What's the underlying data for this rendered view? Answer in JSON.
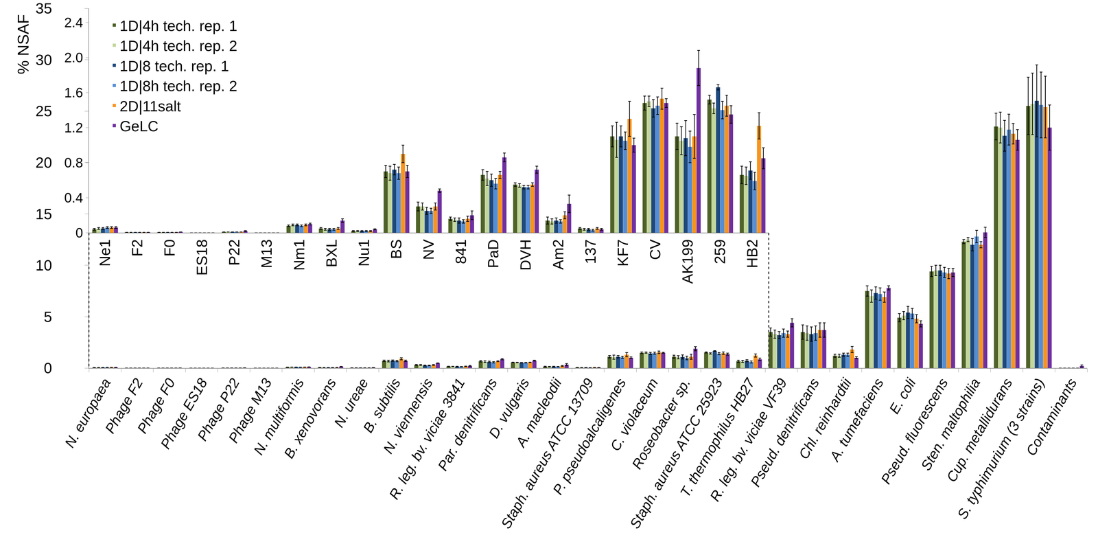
{
  "chart_data": [
    {
      "type": "bar",
      "y_label": "% NSAF",
      "categories": [
        "N. europaea",
        "Phage F2",
        "Phage F0",
        "Phage ES18",
        "Phage P22",
        "Phage M13",
        "N. multiformis",
        "B. xenovorans",
        "N. ureae",
        "B. subtilis",
        "N. viennensis",
        "R. leg. bv. viciae 3841",
        "Par. denitrificans",
        "D. vulgaris",
        "A. macleodii",
        "Staph. aureus ATCC 13709",
        "P. pseudoalcaligenes",
        "C. violaceum",
        "Roseobacter sp.",
        "Staph. aureus ATCC 25923",
        "T. thermophilus HB27",
        "R. leg. bv. viciae VF39",
        "Pseud. denitrificans",
        "Chl. reinhardtii",
        "A. tumefaciens",
        "E. coli",
        "Pseud. fluorescens",
        "Sten. maltophilia",
        "Cup. metallidurans",
        "S. typhimurium (3 strains)",
        "Contaminants"
      ],
      "series": [
        {
          "name": "1D|4h tech. rep. 1",
          "color": "#4f6228",
          "values": [
            0.04,
            0.005,
            0.005,
            0,
            0.01,
            0,
            0.08,
            0.05,
            0.02,
            0.7,
            0.3,
            0.16,
            0.66,
            0.55,
            0.14,
            0.05,
            1.1,
            1.48,
            1.1,
            1.52,
            0.66,
            3.5,
            3.5,
            1.2,
            7.5,
            4.9,
            9.4,
            12.3,
            23.5,
            25.5,
            0
          ],
          "errors": [
            0.01,
            0,
            0,
            0,
            0,
            0,
            0.01,
            0.01,
            0.005,
            0.07,
            0.05,
            0.02,
            0.06,
            0.02,
            0.04,
            0.01,
            0.12,
            0.08,
            0.15,
            0.05,
            0.1,
            0.4,
            0.7,
            0.15,
            0.5,
            0.4,
            0.5,
            0.2,
            1.3,
            2.8,
            0
          ]
        },
        {
          "name": "1D|4h tech. rep. 2",
          "color": "#c3d69b",
          "values": [
            0.05,
            0.005,
            0.005,
            0,
            0.01,
            0,
            0.09,
            0.04,
            0.02,
            0.68,
            0.3,
            0.15,
            0.62,
            0.54,
            0.13,
            0.04,
            1.06,
            1.5,
            1.05,
            1.42,
            0.65,
            3.3,
            3.4,
            1.2,
            7.0,
            5.1,
            9.5,
            12.5,
            23.4,
            25.7,
            0
          ],
          "errors": [
            0.01,
            0,
            0,
            0,
            0,
            0,
            0.01,
            0.01,
            0.005,
            0.08,
            0.04,
            0.02,
            0.08,
            0.02,
            0.03,
            0.01,
            0.2,
            0.06,
            0.16,
            0.06,
            0.1,
            0.4,
            0.7,
            0.15,
            0.6,
            0.4,
            0.5,
            0.2,
            1.5,
            3.0,
            0
          ]
        },
        {
          "name": "1D|8 tech. rep. 1",
          "color": "#1f497d",
          "values": [
            0.05,
            0.005,
            0.005,
            0,
            0.01,
            0,
            0.09,
            0.04,
            0.02,
            0.72,
            0.25,
            0.14,
            0.6,
            0.52,
            0.14,
            0.04,
            1.1,
            1.42,
            1.08,
            1.66,
            0.71,
            3.2,
            3.3,
            1.3,
            7.3,
            5.4,
            9.5,
            12.0,
            22.6,
            26.0,
            0
          ],
          "errors": [
            0.01,
            0,
            0,
            0,
            0,
            0,
            0.01,
            0.01,
            0.005,
            0.06,
            0.04,
            0.03,
            0.07,
            0.02,
            0.03,
            0.01,
            0.12,
            0.1,
            0.2,
            0.03,
            0.1,
            0.35,
            0.7,
            0.15,
            0.6,
            0.6,
            0.5,
            0.6,
            1.5,
            3.5,
            0
          ]
        },
        {
          "name": "1D|8h tech. rep. 2",
          "color": "#558ed5",
          "values": [
            0.06,
            0.005,
            0.005,
            0,
            0.01,
            0,
            0.08,
            0.04,
            0.02,
            0.68,
            0.25,
            0.13,
            0.56,
            0.52,
            0.13,
            0.03,
            1.05,
            1.45,
            0.98,
            1.4,
            0.59,
            3.4,
            3.4,
            1.3,
            7.2,
            5.3,
            9.3,
            12.8,
            23.2,
            25.6,
            0
          ],
          "errors": [
            0.01,
            0,
            0,
            0,
            0,
            0,
            0.01,
            0.01,
            0.005,
            0.07,
            0.03,
            0.02,
            0.06,
            0.02,
            0.02,
            0.01,
            0.1,
            0.1,
            0.18,
            0.1,
            0.1,
            0.4,
            0.7,
            0.15,
            0.6,
            0.5,
            0.5,
            0.6,
            1.5,
            3.2,
            0
          ]
        },
        {
          "name": "2D|11salt",
          "color": "#f7941d",
          "values": [
            0.06,
            0.005,
            0.005,
            0,
            0.01,
            0,
            0.09,
            0.05,
            0.02,
            0.9,
            0.3,
            0.16,
            0.66,
            0.55,
            0.2,
            0.05,
            1.3,
            1.53,
            1.1,
            1.45,
            1.22,
            3.3,
            3.7,
            1.8,
            6.9,
            4.8,
            9.2,
            12.0,
            22.8,
            25.4,
            0
          ],
          "errors": [
            0.01,
            0,
            0,
            0,
            0,
            0,
            0.01,
            0.01,
            0.005,
            0.1,
            0.04,
            0.03,
            0.04,
            0.02,
            0.04,
            0.01,
            0.2,
            0.12,
            0.25,
            0.12,
            0.15,
            0.3,
            0.7,
            0.3,
            0.5,
            0.4,
            0.5,
            0.3,
            1.0,
            3.0,
            0
          ]
        },
        {
          "name": "GeLC",
          "color": "#7030a0",
          "values": [
            0.06,
            0.005,
            0.01,
            0,
            0.02,
            0,
            0.1,
            0.14,
            0.04,
            0.7,
            0.48,
            0.2,
            0.86,
            0.72,
            0.33,
            0.04,
            1.0,
            1.48,
            1.88,
            1.35,
            0.85,
            4.4,
            3.7,
            1.0,
            7.8,
            4.3,
            9.3,
            13.2,
            22.2,
            23.4,
            0.2
          ],
          "errors": [
            0.01,
            0,
            0,
            0,
            0.005,
            0,
            0.01,
            0.02,
            0.005,
            0.07,
            0.02,
            0.05,
            0.05,
            0.04,
            0.1,
            0.01,
            0.08,
            0.05,
            0.2,
            0.1,
            0.12,
            0.4,
            0.7,
            0.1,
            0.2,
            0.3,
            0.4,
            0.5,
            1.0,
            2.2,
            0.1
          ]
        }
      ],
      "ylim": [
        0,
        35
      ],
      "yticks": [
        0,
        5,
        10,
        15,
        20,
        25,
        30,
        35
      ],
      "legend": "upper left",
      "grid": false
    },
    {
      "type": "bar",
      "categories": [
        "Ne1",
        "F2",
        "F0",
        "ES18",
        "P22",
        "M13",
        "Nm1",
        "BXL",
        "Nu1",
        "BS",
        "NV",
        "841",
        "PaD",
        "DVH",
        "Am2",
        "137",
        "KF7",
        "CV",
        "AK199",
        "259",
        "HB2"
      ],
      "series": [
        {
          "color": "#4f6228",
          "values": [
            0.04,
            0.005,
            0.005,
            0,
            0.01,
            0,
            0.08,
            0.05,
            0.02,
            0.7,
            0.3,
            0.16,
            0.66,
            0.55,
            0.14,
            0.05,
            1.1,
            1.48,
            1.1,
            1.52,
            0.66
          ],
          "errors": [
            0.01,
            0,
            0,
            0,
            0,
            0,
            0.01,
            0.01,
            0.005,
            0.07,
            0.05,
            0.02,
            0.06,
            0.02,
            0.04,
            0.01,
            0.12,
            0.08,
            0.15,
            0.05,
            0.1
          ]
        },
        {
          "color": "#c3d69b",
          "values": [
            0.05,
            0.005,
            0.005,
            0,
            0.01,
            0,
            0.09,
            0.04,
            0.02,
            0.68,
            0.3,
            0.15,
            0.62,
            0.54,
            0.13,
            0.04,
            1.06,
            1.5,
            1.05,
            1.42,
            0.65
          ],
          "errors": [
            0.01,
            0,
            0,
            0,
            0,
            0,
            0.01,
            0.01,
            0.005,
            0.08,
            0.04,
            0.02,
            0.08,
            0.02,
            0.03,
            0.01,
            0.2,
            0.06,
            0.16,
            0.06,
            0.1
          ]
        },
        {
          "color": "#1f497d",
          "values": [
            0.05,
            0.005,
            0.005,
            0,
            0.01,
            0,
            0.09,
            0.04,
            0.02,
            0.72,
            0.25,
            0.14,
            0.6,
            0.52,
            0.14,
            0.04,
            1.1,
            1.42,
            1.08,
            1.66,
            0.71
          ],
          "errors": [
            0.01,
            0,
            0,
            0,
            0,
            0,
            0.01,
            0.01,
            0.005,
            0.06,
            0.04,
            0.03,
            0.07,
            0.02,
            0.03,
            0.01,
            0.12,
            0.1,
            0.2,
            0.03,
            0.1
          ]
        },
        {
          "color": "#558ed5",
          "values": [
            0.06,
            0.005,
            0.005,
            0,
            0.01,
            0,
            0.08,
            0.04,
            0.02,
            0.68,
            0.25,
            0.13,
            0.56,
            0.52,
            0.13,
            0.03,
            1.05,
            1.45,
            0.98,
            1.4,
            0.59
          ],
          "errors": [
            0.01,
            0,
            0,
            0,
            0,
            0,
            0.01,
            0.01,
            0.005,
            0.07,
            0.03,
            0.02,
            0.06,
            0.02,
            0.02,
            0.01,
            0.1,
            0.1,
            0.18,
            0.1,
            0.1
          ]
        },
        {
          "color": "#f7941d",
          "values": [
            0.06,
            0.005,
            0.005,
            0,
            0.01,
            0,
            0.09,
            0.05,
            0.02,
            0.9,
            0.3,
            0.16,
            0.66,
            0.55,
            0.2,
            0.05,
            1.3,
            1.53,
            1.1,
            1.45,
            1.22
          ],
          "errors": [
            0.01,
            0,
            0,
            0,
            0,
            0,
            0.01,
            0.01,
            0.005,
            0.1,
            0.04,
            0.03,
            0.04,
            0.02,
            0.04,
            0.01,
            0.2,
            0.12,
            0.25,
            0.12,
            0.15
          ]
        },
        {
          "color": "#7030a0",
          "values": [
            0.06,
            0.005,
            0.01,
            0,
            0.02,
            0,
            0.1,
            0.14,
            0.04,
            0.7,
            0.48,
            0.2,
            0.86,
            0.72,
            0.33,
            0.04,
            1.0,
            1.48,
            1.88,
            1.35,
            0.85
          ],
          "errors": [
            0.01,
            0,
            0,
            0,
            0.005,
            0,
            0.01,
            0.02,
            0.005,
            0.07,
            0.02,
            0.05,
            0.05,
            0.04,
            0.1,
            0.01,
            0.08,
            0.05,
            0.2,
            0.1,
            0.12
          ]
        }
      ],
      "ylim": [
        0,
        2.4
      ],
      "yticks": [
        0,
        0.4,
        0.8,
        1.2,
        1.6,
        {
          "value": 2,
          "label": "2.0"
        },
        2.4
      ],
      "grid": false
    }
  ]
}
